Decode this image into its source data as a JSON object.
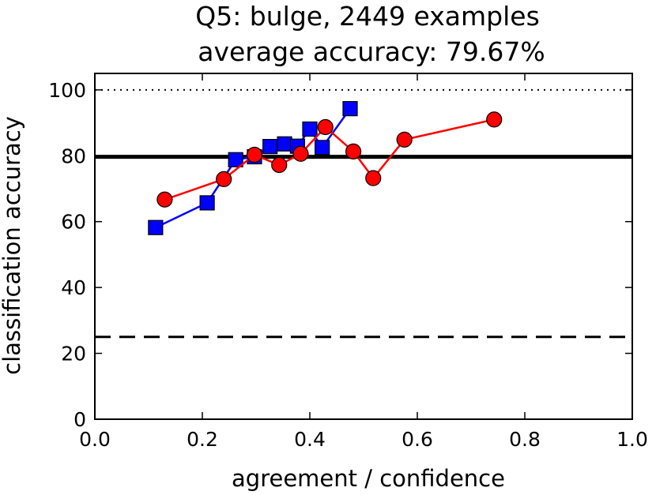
{
  "chart_data": {
    "type": "line",
    "title": "Q5: bulge, 2449 examples",
    "subtitle": "average accuracy: 79.67%",
    "xlabel": "agreement / confidence",
    "ylabel": "classification accuracy",
    "xlim": [
      0.0,
      1.0
    ],
    "ylim": [
      0,
      105
    ],
    "xticks": [
      0.0,
      0.2,
      0.4,
      0.6,
      0.8,
      1.0
    ],
    "xtick_labels": [
      "0.0",
      "0.2",
      "0.4",
      "0.6",
      "0.8",
      "1.0"
    ],
    "yticks": [
      0,
      20,
      40,
      60,
      80,
      100
    ],
    "ytick_labels": [
      "0",
      "20",
      "40",
      "60",
      "80",
      "100"
    ],
    "grid": false,
    "legend": false,
    "reference_lines": [
      {
        "y": 100,
        "style": "dotted",
        "color": "#000000"
      },
      {
        "y": 79.67,
        "style": "solid",
        "color": "#000000"
      },
      {
        "y": 25,
        "style": "dashed",
        "color": "#000000"
      }
    ],
    "series": [
      {
        "color": "#0000ff",
        "marker": "square",
        "x": [
          0.113,
          0.209,
          0.262,
          0.297,
          0.326,
          0.353,
          0.377,
          0.4,
          0.423,
          0.475
        ],
        "y": [
          58.2,
          65.7,
          78.8,
          79.7,
          82.8,
          83.6,
          82.9,
          88.1,
          82.5,
          94.3
        ]
      },
      {
        "color": "#ff0000",
        "marker": "circle",
        "x": [
          0.13,
          0.24,
          0.297,
          0.343,
          0.383,
          0.429,
          0.481,
          0.518,
          0.576,
          0.743
        ],
        "y": [
          66.7,
          72.9,
          80.3,
          77.2,
          80.6,
          88.7,
          81.3,
          73.2,
          84.9,
          91.0
        ]
      }
    ]
  }
}
